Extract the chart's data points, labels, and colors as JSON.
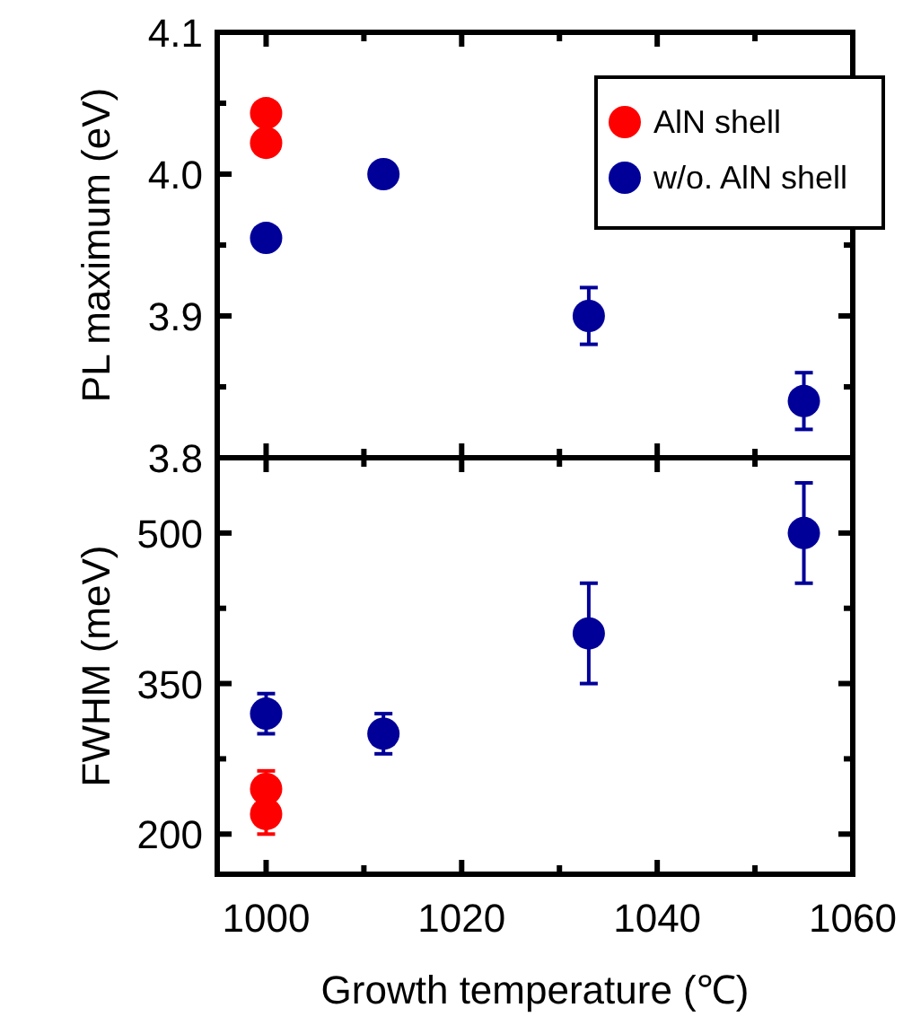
{
  "chart_data": [
    {
      "type": "scatter",
      "ylabel": "PL maximum (eV)",
      "xlim": [
        995,
        1060
      ],
      "xticks": [
        1000,
        {
          "value": 1010,
          "label": null
        },
        1020,
        {
          "value": 1030,
          "label": null
        },
        1040,
        {
          "value": 1050,
          "label": null
        },
        1060
      ],
      "ylim": [
        3.8,
        4.1
      ],
      "yticks": [
        {
          "value": 3.8,
          "label": "3.8"
        },
        {
          "value": 3.85,
          "label": null
        },
        {
          "value": 3.9,
          "label": "3.9"
        },
        {
          "value": 3.95,
          "label": null
        },
        {
          "value": 4.0,
          "label": "4.0"
        },
        {
          "value": 4.05,
          "label": null
        },
        {
          "value": 4.1,
          "label": "4.1"
        }
      ],
      "tick_labels": "y",
      "marker": "circle",
      "legend": "top right",
      "grid": false,
      "series": [
        {
          "name": "AlN shell",
          "color": "#ff0000",
          "x": [
            1000,
            1000
          ],
          "values": [
            4.043,
            4.022
          ]
        },
        {
          "name": "w/o. AlN shell",
          "color": "#000099",
          "x": [
            1000,
            1012,
            1033,
            1055
          ],
          "values": [
            3.955,
            4.0,
            3.9,
            3.84
          ],
          "errors": [
            null,
            null,
            0.02,
            0.02
          ]
        }
      ]
    },
    {
      "type": "scatter",
      "xlabel": "Growth temperature (℃)",
      "ylabel": "FWHM (meV)",
      "xlim": [
        995,
        1060
      ],
      "xticks": [
        1000,
        {
          "value": 1010,
          "label": null
        },
        1020,
        {
          "value": 1030,
          "label": null
        },
        1040,
        {
          "value": 1050,
          "label": null
        },
        1060
      ],
      "ylim": [
        160,
        575
      ],
      "yticks": [
        200,
        {
          "value": 275,
          "label": null
        },
        350,
        {
          "value": 425,
          "label": null
        },
        500
      ],
      "marker": "circle",
      "legend": false,
      "grid": false,
      "series": [
        {
          "color": "#ff0000",
          "x": [
            1000,
            1000
          ],
          "values": [
            245,
            220
          ],
          "errors": [
            18,
            20
          ]
        },
        {
          "color": "#000099",
          "x": [
            1000,
            1012,
            1033,
            1055
          ],
          "values": [
            320,
            300,
            400,
            500
          ],
          "errors": [
            20,
            20,
            50,
            50
          ]
        }
      ]
    }
  ]
}
